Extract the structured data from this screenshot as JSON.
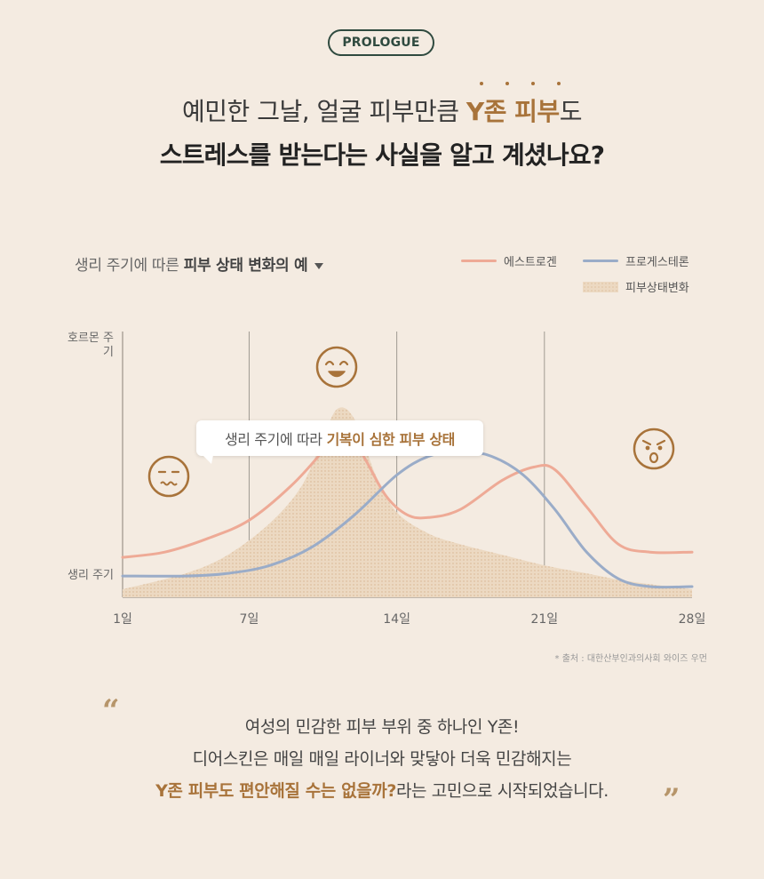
{
  "badge": "PROLOGUE",
  "headline": {
    "line1_pre": "예민한 그날, 얼굴 피부만큼 ",
    "line1_highlight": "Y존 피부",
    "line1_post": "도",
    "line2": "스트레스를 받는다는 사실을 알고 계셨나요?"
  },
  "chart_header": {
    "title_pre": "생리 주기에 따른 ",
    "title_bold": "피부 상태 변화의 예"
  },
  "callout": {
    "pre": "생리 주기에 따라 ",
    "bold": "기복이 심한 피부 상태"
  },
  "source": "* 출처 : 대한산부인과의사회 와이즈 우먼",
  "quote": {
    "line1": "여성의 민감한 피부 부위 중 하나인 Y존!",
    "line2": "디어스킨은 매일 매일 라이너와 맞닿아 더욱 민감해지는",
    "line3_bold": "Y존 피부도 편안해질 수는 없을까?",
    "line3_rest": "라는 고민으로 시작되었습니다.",
    "open_mark": "“",
    "close_mark": "”"
  },
  "colors": {
    "accent": "#a8733a",
    "estrogen": "#eeaa96",
    "progesterone": "#9aacc8",
    "skin_area": "#ecd9c2",
    "badge": "#2f4a3f"
  },
  "icons": [
    "neutral-face-icon",
    "happy-face-icon",
    "angry-face-icon"
  ],
  "chart_data": {
    "type": "line",
    "title": "생리 주기에 따른 피부 상태 변화의 예",
    "y_labels": {
      "top": "호르몬 주기",
      "bottom": "생리 주기"
    },
    "x_ticks": [
      "1일",
      "7일",
      "14일",
      "21일",
      "28일"
    ],
    "xlim": [
      1,
      28
    ],
    "ylim": [
      0,
      1
    ],
    "grid": "vertical lines at 7, 14, 21",
    "legend_position": "top-right",
    "series": [
      {
        "name": "에스트로겐",
        "kind": "line",
        "x": [
          1,
          3,
          5,
          7,
          9,
          10.5,
          11.5,
          12.5,
          13.5,
          14.5,
          15.5,
          17,
          19,
          20.5,
          21.5,
          23,
          24.5,
          26,
          28
        ],
        "y": [
          0.15,
          0.17,
          0.22,
          0.29,
          0.42,
          0.55,
          0.65,
          0.52,
          0.38,
          0.31,
          0.3,
          0.33,
          0.44,
          0.49,
          0.48,
          0.34,
          0.2,
          0.17,
          0.17
        ]
      },
      {
        "name": "프로게스테론",
        "kind": "line",
        "x": [
          1,
          4,
          6,
          8,
          10,
          12,
          14,
          15.5,
          17,
          18.5,
          20,
          21.5,
          23,
          24.5,
          26,
          28
        ],
        "y": [
          0.08,
          0.08,
          0.09,
          0.12,
          0.19,
          0.31,
          0.46,
          0.53,
          0.55,
          0.53,
          0.46,
          0.33,
          0.17,
          0.07,
          0.04,
          0.04
        ]
      },
      {
        "name": "피부상태변화",
        "kind": "area",
        "x": [
          1,
          4,
          6,
          8,
          9.5,
          10.5,
          11.2,
          12,
          13,
          14,
          15.5,
          17,
          19,
          21,
          23,
          25,
          28
        ],
        "y": [
          0.03,
          0.09,
          0.16,
          0.28,
          0.42,
          0.6,
          0.71,
          0.67,
          0.46,
          0.32,
          0.24,
          0.2,
          0.16,
          0.12,
          0.09,
          0.06,
          0.03
        ]
      }
    ]
  }
}
